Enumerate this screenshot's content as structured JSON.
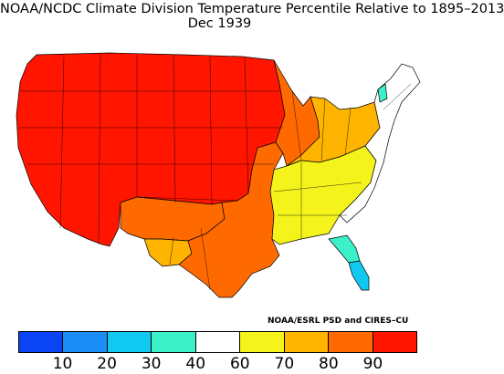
{
  "title_line1": "NOAA/NCDC Climate Division Temperature Percentile Relative to 1895–2013",
  "title_line2": "Dec 1939",
  "credit": "NOAA/ESRL PSD and CIRES–CU",
  "legend": {
    "colors": [
      "#0a44f5",
      "#1c8df5",
      "#10c8f0",
      "#3cf0c8",
      "#ffffff",
      "#f4f41c",
      "#ffb400",
      "#ff6a00",
      "#ff1500"
    ],
    "ticks": [
      "10",
      "20",
      "30",
      "40",
      "60",
      "70",
      "80",
      "90"
    ]
  },
  "regions": [
    {
      "name": "west",
      "color": "#ff1500"
    },
    {
      "name": "southwest-new-mexico",
      "color": "#ff6a00"
    },
    {
      "name": "west-texas",
      "color": "#ffb400"
    },
    {
      "name": "central-texas-arkansas",
      "color": "#ff6a00"
    },
    {
      "name": "midwest-east",
      "color": "#ff6a00"
    },
    {
      "name": "great-lakes-ohio",
      "color": "#ffb400"
    },
    {
      "name": "southeast-appalachia",
      "color": "#f4f41c"
    },
    {
      "name": "northeast",
      "color": "#ffffff"
    },
    {
      "name": "florida-north",
      "color": "#3cf0c8"
    },
    {
      "name": "florida-south",
      "color": "#10c8f0"
    }
  ]
}
